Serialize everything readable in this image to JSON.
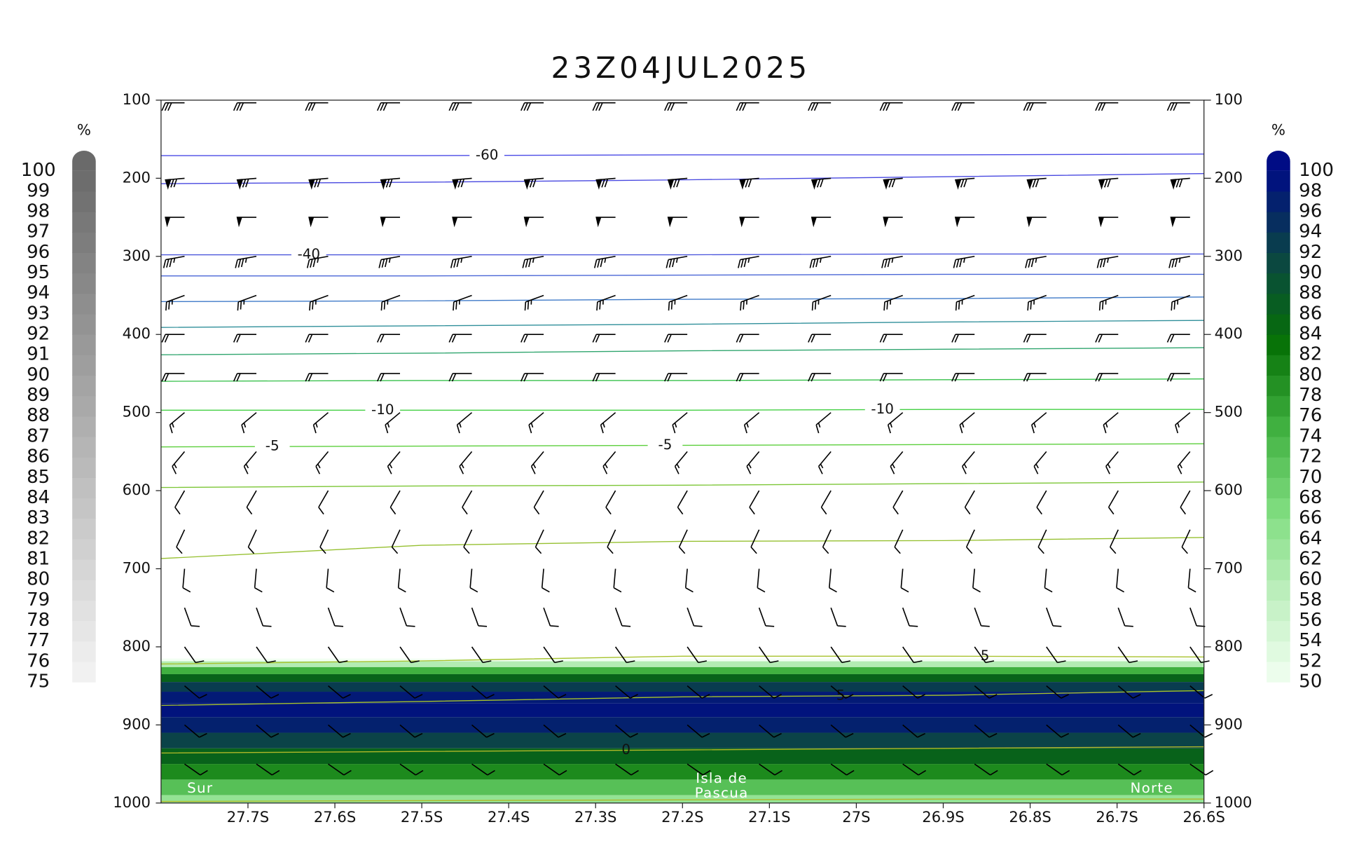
{
  "chart_data": {
    "type": "cross-section",
    "title": "23Z04JUL2025",
    "xlim": [
      -27.8,
      -26.6
    ],
    "xticks": [
      {
        "value": -27.7,
        "label": "27.7S"
      },
      {
        "value": -27.6,
        "label": "27.6S"
      },
      {
        "value": -27.5,
        "label": "27.5S"
      },
      {
        "value": -27.4,
        "label": "27.4S"
      },
      {
        "value": -27.3,
        "label": "27.3S"
      },
      {
        "value": -27.2,
        "label": "27.2S"
      },
      {
        "value": -27.1,
        "label": "27.1S"
      },
      {
        "value": -27.0,
        "label": "27S"
      },
      {
        "value": -26.9,
        "label": "26.9S"
      },
      {
        "value": -26.8,
        "label": "26.8S"
      },
      {
        "value": -26.7,
        "label": "26.7S"
      },
      {
        "value": -26.6,
        "label": "26.6S"
      }
    ],
    "ylim": [
      100,
      1000
    ],
    "yticks": [
      100,
      200,
      300,
      400,
      500,
      600,
      700,
      800,
      900,
      1000
    ],
    "annotations": [
      {
        "text": "Sur",
        "lat": -27.77,
        "p": 982
      },
      {
        "text": "Isla de",
        "lat": -27.155,
        "p": 969
      },
      {
        "text": "Pascua",
        "lat": -27.155,
        "p": 988
      },
      {
        "text": "Norte",
        "lat": -26.66,
        "p": 982
      }
    ],
    "rh": {
      "pressure": [
        815,
        822,
        830,
        840,
        850,
        865,
        880,
        900,
        920,
        940,
        960,
        980,
        1000
      ],
      "values": [
        50,
        60,
        75,
        86,
        93,
        98,
        99,
        97,
        92,
        86,
        80,
        72,
        64
      ]
    },
    "contours": {
      "x": [
        -27.8,
        -27.5,
        -27.2,
        -26.9,
        -26.6
      ],
      "lines": [
        {
          "level": -60,
          "label_lat": [
            -27.425
          ],
          "color": "#4a4ae6",
          "values": [
            171,
            171,
            170,
            170,
            169
          ]
        },
        {
          "color": "#4848e0",
          "values": [
            207,
            205,
            202,
            198,
            194
          ]
        },
        {
          "level": -40,
          "label_lat": [
            -27.63
          ],
          "color": "#4a55dc",
          "values": [
            298,
            298,
            298,
            297,
            297
          ]
        },
        {
          "color": "#4a66d6",
          "values": [
            325,
            325,
            324,
            323,
            323
          ]
        },
        {
          "color": "#3f7ac8",
          "values": [
            358,
            357,
            355,
            354,
            352
          ]
        },
        {
          "color": "#2f8f9a",
          "values": [
            391,
            389,
            387,
            384,
            382
          ]
        },
        {
          "color": "#2fa56e",
          "values": [
            426,
            424,
            421,
            419,
            417
          ]
        },
        {
          "color": "#36c04a",
          "values": [
            460,
            459,
            459,
            458,
            457
          ]
        },
        {
          "level": -10,
          "label_lat": [
            -27.545,
            -26.97
          ],
          "color": "#44d044",
          "values": [
            497,
            497,
            497,
            496,
            496
          ]
        },
        {
          "level": -5,
          "label_lat": [
            -27.672,
            -27.22
          ],
          "color": "#5ccf3c",
          "values": [
            544,
            543,
            542,
            541,
            540
          ]
        },
        {
          "color": "#7cc636",
          "values": [
            596,
            594,
            593,
            591,
            589
          ]
        },
        {
          "color": "#96c030",
          "values": [
            687,
            670,
            665,
            664,
            660
          ]
        },
        {
          "level": 5,
          "label_lat": [
            -26.852
          ],
          "color": "#a7c22c",
          "values": [
            822,
            818,
            812,
            812,
            813
          ]
        },
        {
          "level": 5,
          "label_lat": [
            -27.018
          ],
          "color": "#a7c22c",
          "values": [
            875,
            870,
            864,
            862,
            856
          ]
        },
        {
          "level": 0,
          "label_lat": [
            -27.265
          ],
          "color": "#b0b828",
          "values": [
            936,
            934,
            932,
            930,
            928
          ]
        },
        {
          "color": "#b0b828",
          "values": [
            998,
            997,
            996,
            995,
            995
          ]
        }
      ]
    },
    "winds": {
      "pressure": [
        100,
        200,
        250,
        300,
        350,
        400,
        450,
        500,
        550,
        600,
        650,
        700,
        750,
        800,
        850,
        900,
        950
      ],
      "direction": [
        270,
        265,
        270,
        260,
        250,
        270,
        270,
        230,
        220,
        210,
        205,
        185,
        160,
        145,
        130,
        130,
        125
      ],
      "speed": [
        30,
        80,
        50,
        35,
        25,
        20,
        20,
        15,
        15,
        10,
        10,
        10,
        10,
        10,
        10,
        10,
        10
      ]
    },
    "colorbars": [
      {
        "label": "%",
        "side": "left",
        "ticks": [
          75,
          76,
          77,
          78,
          79,
          80,
          81,
          82,
          83,
          84,
          85,
          86,
          87,
          88,
          89,
          90,
          91,
          92,
          93,
          94,
          95,
          96,
          97,
          98,
          99,
          100
        ],
        "colors": [
          "#f4f4f4",
          "#6a6a6a"
        ]
      },
      {
        "label": "%",
        "side": "right",
        "ticks": [
          50,
          52,
          54,
          56,
          58,
          60,
          62,
          64,
          66,
          68,
          70,
          72,
          74,
          76,
          78,
          80,
          82,
          84,
          86,
          88,
          90,
          92,
          94,
          96,
          98,
          100
        ],
        "colors": [
          "#f2fff2",
          "#c0f0c0",
          "#80dd80",
          "#40b040",
          "#067006",
          "#0b4545",
          "#000c85"
        ]
      }
    ]
  }
}
